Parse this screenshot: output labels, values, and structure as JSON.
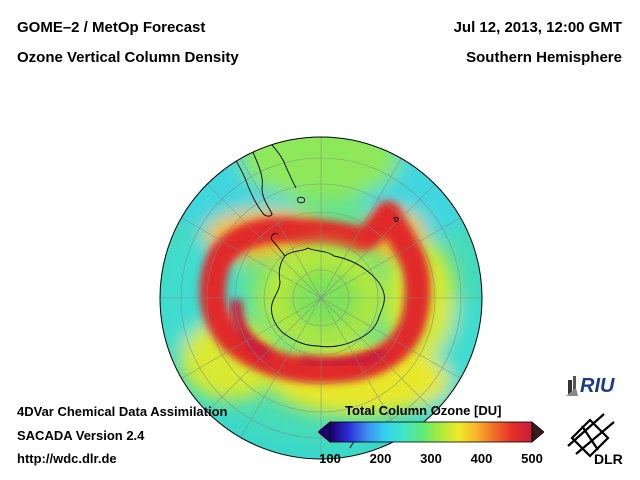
{
  "header": {
    "title_line1": "GOME–2 / MetOp Forecast",
    "title_line2": "Ozone Vertical Column Density",
    "date_time": "Jul 12, 2013, 12:00 GMT",
    "region": "Southern Hemisphere"
  },
  "footer": {
    "line1": "4DVar Chemical Data Assimilation",
    "line2": "SACADA Version 2.4",
    "line3": "http://wdc.dlr.de"
  },
  "colorbar": {
    "title": "Total Column Ozone [DU]",
    "ticks": [
      "100",
      "200",
      "300",
      "400",
      "500"
    ],
    "min": 100,
    "max": 500,
    "colors": [
      "#1a006e",
      "#2b2bd6",
      "#3f8cf0",
      "#33d2f0",
      "#40e6c8",
      "#5cea7a",
      "#a8ec3c",
      "#f0ea28",
      "#f7b22a",
      "#f06a26",
      "#e42a2a",
      "#c81e3c"
    ]
  },
  "logos": {
    "riu": "RIU",
    "dlr": "DLR"
  },
  "map": {
    "projection": "orthographic, south polar view",
    "background_color": "#40e0c8"
  }
}
